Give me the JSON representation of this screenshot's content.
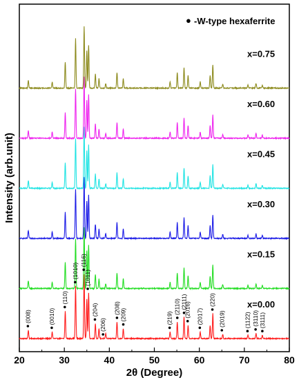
{
  "chart_data": {
    "type": "line",
    "xlabel": "2θ (Degree)",
    "ylabel": "Intensity (arb.unit)",
    "xlim": [
      20,
      80
    ],
    "x_ticks": [
      20,
      30,
      40,
      50,
      60,
      70,
      80
    ],
    "y_ticks_shown": false,
    "legend": {
      "marker": "●",
      "text": "-W-type hexaferrite",
      "position": "top-right"
    },
    "series": [
      {
        "name": "x=0.00",
        "color": "#ff1a1a",
        "baseline": 0,
        "scale": 1.0
      },
      {
        "name": "x=0.15",
        "color": "#22dd22",
        "baseline": 1,
        "scale": 0.95
      },
      {
        "name": "x=0.30",
        "color": "#1a1ae6",
        "baseline": 2,
        "scale": 0.95
      },
      {
        "name": "x=0.45",
        "color": "#1ee3e3",
        "baseline": 3,
        "scale": 0.95
      },
      {
        "name": "x=0.60",
        "color": "#ee22ee",
        "baseline": 4,
        "scale": 0.95
      },
      {
        "name": "x=0.75",
        "color": "#8c8a1c",
        "baseline": 5,
        "scale": 0.95
      }
    ],
    "peaks": [
      {
        "x": 22.0,
        "h": 0.1
      },
      {
        "x": 27.3,
        "h": 0.08
      },
      {
        "x": 30.2,
        "h": 0.33
      },
      {
        "x": 32.5,
        "h": 0.63
      },
      {
        "x": 34.4,
        "h": 0.78
      },
      {
        "x": 35.0,
        "h": 0.48
      },
      {
        "x": 35.4,
        "h": 0.55
      },
      {
        "x": 36.9,
        "h": 0.18
      },
      {
        "x": 37.7,
        "h": 0.12
      },
      {
        "x": 39.2,
        "h": 0.06
      },
      {
        "x": 41.7,
        "h": 0.2
      },
      {
        "x": 43.1,
        "h": 0.12
      },
      {
        "x": 53.5,
        "h": 0.08
      },
      {
        "x": 55.1,
        "h": 0.2
      },
      {
        "x": 56.6,
        "h": 0.26
      },
      {
        "x": 57.5,
        "h": 0.16
      },
      {
        "x": 60.2,
        "h": 0.08
      },
      {
        "x": 62.4,
        "h": 0.16
      },
      {
        "x": 63.0,
        "h": 0.3
      },
      {
        "x": 65.2,
        "h": 0.05
      },
      {
        "x": 70.8,
        "h": 0.04
      },
      {
        "x": 72.6,
        "h": 0.06
      },
      {
        "x": 74.0,
        "h": 0.04
      }
    ],
    "annotations": [
      {
        "x": 21.9,
        "text": "(008)"
      },
      {
        "x": 27.2,
        "text": "(0010)"
      },
      {
        "x": 30.1,
        "text": "(110)"
      },
      {
        "x": 32.4,
        "text": "(1010)"
      },
      {
        "x": 34.3,
        "text": "(116)"
      },
      {
        "x": 35.2,
        "text": "(1011)"
      },
      {
        "x": 36.8,
        "text": "(204)"
      },
      {
        "x": 38.6,
        "text": "(206)"
      },
      {
        "x": 41.7,
        "text": "(208)"
      },
      {
        "x": 43.1,
        "text": "(209)"
      },
      {
        "x": 53.4,
        "text": "(219)"
      },
      {
        "x": 55.1,
        "text": "(2110)"
      },
      {
        "x": 56.6,
        "text": "(2111)"
      },
      {
        "x": 57.4,
        "text": "(2016)"
      },
      {
        "x": 60.1,
        "text": "(2017)"
      },
      {
        "x": 62.9,
        "text": "(220)"
      },
      {
        "x": 65.0,
        "text": "(2019)"
      },
      {
        "x": 70.7,
        "text": "(1122)"
      },
      {
        "x": 72.5,
        "text": "(3110)"
      },
      {
        "x": 74.0,
        "text": "(3111)"
      }
    ]
  }
}
